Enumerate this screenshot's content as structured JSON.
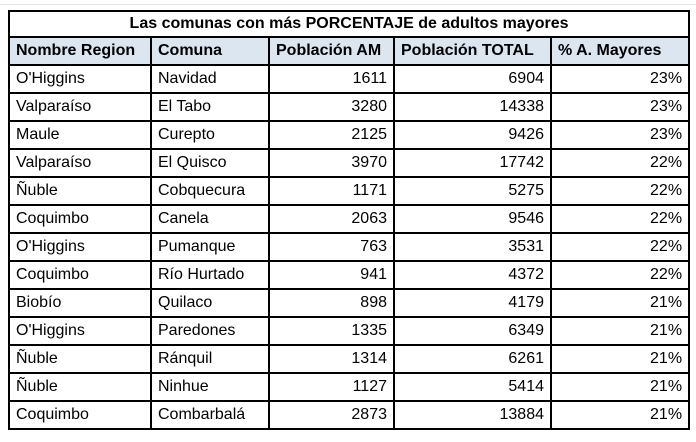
{
  "chart_data": {
    "type": "table",
    "title": "Las comunas con más PORCENTAJE de adultos mayores",
    "columns": [
      "Nombre Region",
      "Comuna",
      "Población AM",
      "Población TOTAL",
      "% A. Mayores"
    ],
    "column_alignment": [
      "left",
      "left",
      "right",
      "right",
      "right"
    ],
    "rows": [
      [
        "O'Higgins",
        "Navidad",
        1611,
        6904,
        "23%"
      ],
      [
        "Valparaíso",
        "El Tabo",
        3280,
        14338,
        "23%"
      ],
      [
        "Maule",
        "Curepto",
        2125,
        9426,
        "23%"
      ],
      [
        "Valparaíso",
        "El Quisco",
        3970,
        17742,
        "22%"
      ],
      [
        "Ñuble",
        "Cobquecura",
        1171,
        5275,
        "22%"
      ],
      [
        "Coquimbo",
        "Canela",
        2063,
        9546,
        "22%"
      ],
      [
        "O'Higgins",
        "Pumanque",
        763,
        3531,
        "22%"
      ],
      [
        "Coquimbo",
        "Río Hurtado",
        941,
        4372,
        "22%"
      ],
      [
        "Biobío",
        "Quilaco",
        898,
        4179,
        "21%"
      ],
      [
        "O'Higgins",
        "Paredones",
        1335,
        6349,
        "21%"
      ],
      [
        "Ñuble",
        "Ránquil",
        1314,
        6261,
        "21%"
      ],
      [
        "Ñuble",
        "Ninhue",
        1127,
        5414,
        "21%"
      ],
      [
        "Coquimbo",
        "Combarbalá",
        2873,
        13884,
        "21%"
      ]
    ]
  },
  "colors": {
    "header_bg": "#dce6f1",
    "border": "#000000",
    "text": "#000000",
    "background": "#ffffff"
  }
}
